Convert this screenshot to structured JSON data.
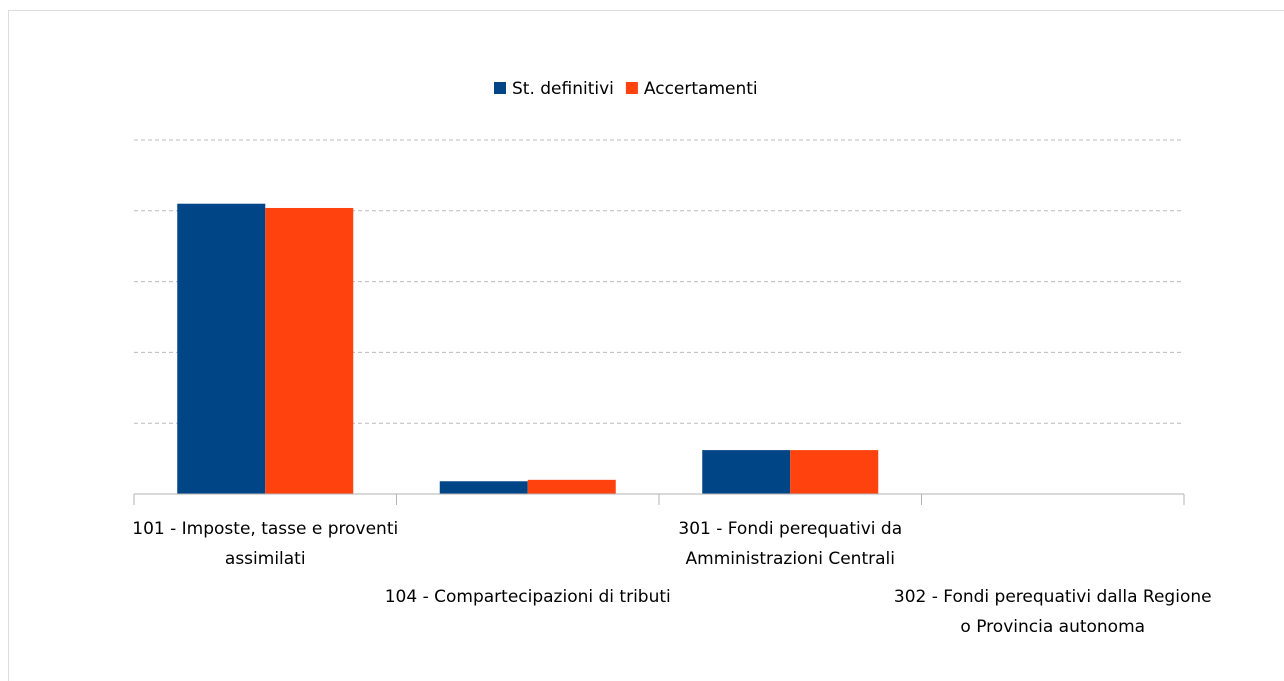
{
  "chart_data": {
    "type": "bar",
    "categories": [
      "101 - Imposte, tasse e proventi assimilati",
      "104 - Compartecipazioni di tributi",
      "301 - Fondi perequativi da Amministrazioni Centrali",
      "302 - Fondi perequativi dalla Regione o Provincia autonoma"
    ],
    "series": [
      {
        "name": "St. definitivi",
        "color": "#004586",
        "values": [
          4.1,
          0.18,
          0.62,
          0
        ]
      },
      {
        "name": "Accertamenti",
        "color": "#ff420e",
        "values": [
          4.04,
          0.2,
          0.62,
          0
        ]
      }
    ],
    "ylim": [
      0,
      5
    ],
    "yticks": [
      1,
      2,
      3,
      4,
      5
    ],
    "grid": true,
    "legend": "top"
  }
}
